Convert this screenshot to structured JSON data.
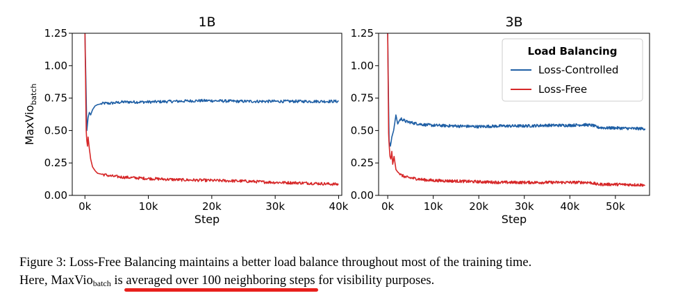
{
  "chart_data": [
    {
      "type": "line",
      "title": "1B",
      "xlabel": "Step",
      "ylabel": "MaxVio",
      "ylabel_sub": "batch",
      "xlim": [
        -2000,
        40500
      ],
      "ylim": [
        0.0,
        1.25
      ],
      "xticks": [
        0,
        10000,
        20000,
        30000,
        40000
      ],
      "xtick_labels": [
        "0k",
        "10k",
        "20k",
        "30k",
        "40k"
      ],
      "yticks": [
        0.0,
        0.25,
        0.5,
        0.75,
        1.0,
        1.25
      ],
      "ytick_labels": [
        "0.00",
        "0.25",
        "0.50",
        "0.75",
        "1.00",
        "1.25"
      ],
      "grid": false,
      "series": [
        {
          "name": "Loss-Controlled",
          "color": "#1f5fa5",
          "x": [
            0,
            150,
            300,
            500,
            700,
            900,
            1200,
            1600,
            2000,
            3000,
            4000,
            6000,
            8000,
            10000,
            14000,
            18000,
            20000,
            24000,
            28000,
            32000,
            36000,
            40000
          ],
          "y": [
            1.25,
            0.9,
            0.5,
            0.6,
            0.64,
            0.62,
            0.66,
            0.69,
            0.7,
            0.71,
            0.71,
            0.72,
            0.72,
            0.72,
            0.725,
            0.73,
            0.73,
            0.725,
            0.725,
            0.725,
            0.725,
            0.725
          ]
        },
        {
          "name": "Loss-Free",
          "color": "#d62728",
          "x": [
            0,
            100,
            200,
            300,
            400,
            500,
            700,
            900,
            1200,
            1600,
            2000,
            3000,
            4000,
            6000,
            8000,
            10000,
            15000,
            20000,
            25000,
            30000,
            35000,
            40000
          ],
          "y": [
            1.25,
            0.9,
            0.5,
            0.42,
            0.38,
            0.45,
            0.36,
            0.28,
            0.22,
            0.19,
            0.17,
            0.16,
            0.15,
            0.14,
            0.135,
            0.13,
            0.12,
            0.115,
            0.11,
            0.1,
            0.095,
            0.085
          ]
        }
      ]
    },
    {
      "type": "line",
      "title": "3B",
      "xlabel": "Step",
      "ylabel": "",
      "xlim": [
        -2000,
        57500
      ],
      "ylim": [
        0.0,
        1.25
      ],
      "xticks": [
        0,
        10000,
        20000,
        30000,
        40000,
        50000
      ],
      "xtick_labels": [
        "0k",
        "10k",
        "20k",
        "30k",
        "40k",
        "50k"
      ],
      "yticks": [
        0.0,
        0.25,
        0.5,
        0.75,
        1.0,
        1.25
      ],
      "ytick_labels": [
        "0.00",
        "0.25",
        "0.50",
        "0.75",
        "1.00",
        "1.25"
      ],
      "grid": false,
      "legend": {
        "title": "Load Balancing",
        "position": "top-right",
        "entries": [
          {
            "label": "Loss-Controlled",
            "color": "#1f5fa5"
          },
          {
            "label": "Loss-Free",
            "color": "#d62728"
          }
        ]
      },
      "series": [
        {
          "name": "Loss-Controlled",
          "color": "#1f5fa5",
          "x": [
            0,
            150,
            300,
            600,
            900,
            1300,
            1800,
            2200,
            2600,
            3000,
            4000,
            6000,
            8000,
            10000,
            15000,
            20000,
            25000,
            30000,
            35000,
            40000,
            43000,
            45000,
            46000,
            48000,
            50000,
            54000,
            56500
          ],
          "y": [
            1.25,
            0.8,
            0.42,
            0.38,
            0.45,
            0.5,
            0.62,
            0.55,
            0.58,
            0.59,
            0.57,
            0.555,
            0.545,
            0.54,
            0.535,
            0.53,
            0.535,
            0.535,
            0.54,
            0.54,
            0.545,
            0.54,
            0.525,
            0.52,
            0.52,
            0.515,
            0.515
          ]
        },
        {
          "name": "Loss-Free",
          "color": "#d62728",
          "x": [
            0,
            100,
            200,
            300,
            500,
            700,
            900,
            1100,
            1400,
            1800,
            2200,
            3000,
            4000,
            6000,
            8000,
            10000,
            15000,
            20000,
            25000,
            30000,
            35000,
            40000,
            44000,
            45000,
            46000,
            50000,
            56500
          ],
          "y": [
            1.25,
            0.85,
            0.48,
            0.4,
            0.3,
            0.28,
            0.34,
            0.24,
            0.3,
            0.2,
            0.18,
            0.155,
            0.14,
            0.13,
            0.12,
            0.115,
            0.11,
            0.105,
            0.1,
            0.1,
            0.1,
            0.1,
            0.1,
            0.095,
            0.085,
            0.085,
            0.08
          ]
        }
      ]
    }
  ],
  "caption": {
    "line1": "Figure 3: Loss-Free Balancing maintains a better load balance throughout most of the training time.",
    "line2_prefix": "Here, MaxVio",
    "line2_sub": "batch",
    "line2_is": " is ",
    "line2_underlined": "averaged over 100 neighboring steps",
    "line2_suffix": " for visibility purposes.",
    "highlight_color": "#e8201c"
  }
}
